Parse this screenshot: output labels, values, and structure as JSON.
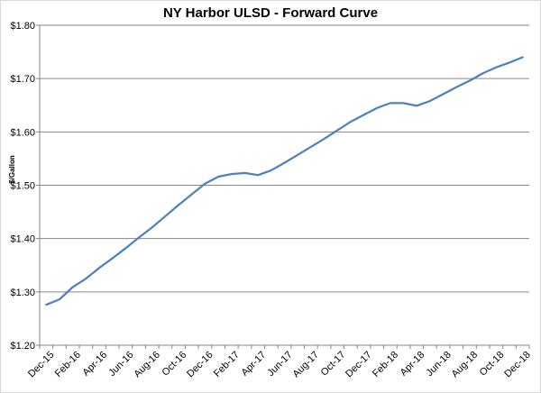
{
  "chart_data": {
    "type": "line",
    "title": "NY Harbor ULSD - Forward Curve",
    "xlabel": "",
    "ylabel": "$/Gallon",
    "ylim": [
      1.2,
      1.8
    ],
    "y_ticks": [
      "$1.20",
      "$1.30",
      "$1.40",
      "$1.50",
      "$1.60",
      "$1.70",
      "$1.80"
    ],
    "x_tick_labels": [
      "Dec-15",
      "Feb-16",
      "Apr-16",
      "Jun-16",
      "Aug-16",
      "Oct-16",
      "Dec-16",
      "Feb-17",
      "Apr-17",
      "Jun-17",
      "Aug-17",
      "Oct-17",
      "Dec-17",
      "Feb-18",
      "Apr-18",
      "Jun-18",
      "Aug-18",
      "Oct-18",
      "Dec-18"
    ],
    "categories": [
      "Dec-15",
      "Jan-16",
      "Feb-16",
      "Mar-16",
      "Apr-16",
      "May-16",
      "Jun-16",
      "Jul-16",
      "Aug-16",
      "Sep-16",
      "Oct-16",
      "Nov-16",
      "Dec-16",
      "Jan-17",
      "Feb-17",
      "Mar-17",
      "Apr-17",
      "May-17",
      "Jun-17",
      "Jul-17",
      "Aug-17",
      "Sep-17",
      "Oct-17",
      "Nov-17",
      "Dec-17",
      "Jan-18",
      "Feb-18",
      "Mar-18",
      "Apr-18",
      "May-18",
      "Jun-18",
      "Jul-18",
      "Aug-18",
      "Sep-18",
      "Oct-18",
      "Nov-18",
      "Dec-18"
    ],
    "series": [
      {
        "color": "#4f81bd",
        "values": [
          1.276,
          1.286,
          1.309,
          1.325,
          1.345,
          1.363,
          1.382,
          1.402,
          1.421,
          1.442,
          1.463,
          1.483,
          1.503,
          1.516,
          1.521,
          1.523,
          1.519,
          1.528,
          1.542,
          1.557,
          1.572,
          1.587,
          1.603,
          1.619,
          1.632,
          1.645,
          1.654,
          1.654,
          1.649,
          1.658,
          1.671,
          1.684,
          1.696,
          1.71,
          1.721,
          1.73,
          1.74
        ]
      }
    ],
    "grid": true,
    "legend": "none"
  }
}
